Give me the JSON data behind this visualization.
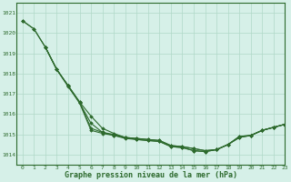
{
  "title": "Graphe pression niveau de la mer (hPa)",
  "background_color": "#d6f0e8",
  "grid_color": "#b0d8c8",
  "line_color": "#2d6a2d",
  "xlim": [
    -0.5,
    23
  ],
  "ylim": [
    1013.5,
    1021.5
  ],
  "yticks": [
    1014,
    1015,
    1016,
    1017,
    1018,
    1019,
    1020,
    1021
  ],
  "ytick_top": 1021,
  "xticks": [
    0,
    1,
    2,
    3,
    4,
    5,
    6,
    7,
    8,
    9,
    10,
    11,
    12,
    13,
    14,
    15,
    16,
    17,
    18,
    19,
    20,
    21,
    22,
    23
  ],
  "series": [
    {
      "x": [
        0,
        1,
        2,
        3,
        4,
        5,
        6,
        7,
        8,
        9,
        10,
        11,
        12,
        13,
        14,
        15,
        16,
        17,
        18,
        19,
        20,
        21,
        22,
        23
      ],
      "y": [
        1020.6,
        1020.2,
        1019.3,
        1018.2,
        1017.4,
        1016.6,
        1015.9,
        1015.3,
        1015.05,
        1014.85,
        1014.8,
        1014.75,
        1014.7,
        1014.45,
        1014.4,
        1014.3,
        1014.2,
        1014.25,
        1014.5,
        1014.85,
        1014.95,
        1015.2,
        1015.35,
        1015.5
      ]
    },
    {
      "x": [
        0,
        1,
        2,
        3,
        4,
        5,
        6,
        7,
        8,
        9,
        10,
        11,
        12,
        13,
        14,
        15,
        16,
        17,
        18,
        19,
        20,
        21,
        22,
        23
      ],
      "y": [
        1020.6,
        1020.2,
        1019.3,
        1018.2,
        1017.4,
        1016.55,
        1015.55,
        1015.1,
        1014.95,
        1014.8,
        1014.75,
        1014.7,
        1014.65,
        1014.4,
        1014.35,
        1014.2,
        1014.15,
        1014.25,
        1014.5,
        1014.9,
        1014.95,
        1015.2,
        1015.35,
        1015.5
      ]
    },
    {
      "x": [
        2,
        3,
        4,
        5,
        6,
        7,
        8,
        9,
        10,
        11,
        12,
        13,
        14,
        15,
        16,
        17,
        18,
        19,
        20,
        21,
        22,
        23
      ],
      "y": [
        1019.3,
        1018.2,
        1017.4,
        1016.6,
        1015.3,
        1015.1,
        1015.0,
        1014.85,
        1014.8,
        1014.75,
        1014.7,
        1014.45,
        1014.4,
        1014.3,
        1014.2,
        1014.25,
        1014.5,
        1014.85,
        1014.95,
        1015.2,
        1015.35,
        1015.5
      ]
    },
    {
      "x": [
        2,
        3,
        4,
        5,
        6,
        7,
        8,
        9,
        10,
        11,
        12,
        13,
        14,
        15,
        16,
        17,
        18,
        19,
        20,
        21,
        22,
        23
      ],
      "y": [
        1019.3,
        1018.2,
        1017.35,
        1016.55,
        1015.2,
        1015.05,
        1014.95,
        1014.85,
        1014.75,
        1014.7,
        1014.65,
        1014.4,
        1014.35,
        1014.2,
        1014.15,
        1014.25,
        1014.5,
        1014.9,
        1014.95,
        1015.2,
        1015.35,
        1015.5
      ]
    }
  ]
}
